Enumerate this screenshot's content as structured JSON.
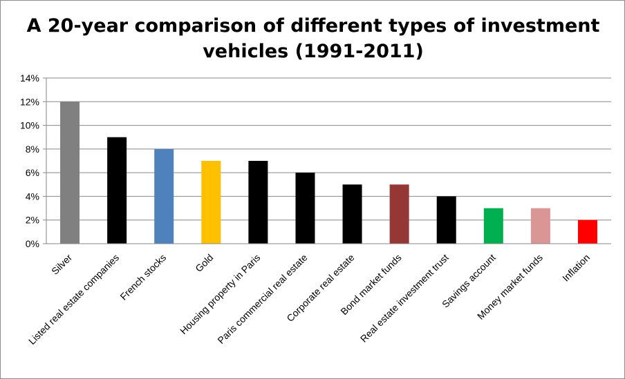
{
  "chart_data": {
    "type": "bar",
    "title_lines": [
      "A 20-year comparison of different types of investment",
      "vehicles (1991-2011)"
    ],
    "xlabel": "",
    "ylabel": "",
    "ylim": [
      0,
      14
    ],
    "y_ticks": [
      "0%",
      "2%",
      "4%",
      "6%",
      "8%",
      "10%",
      "12%",
      "14%"
    ],
    "grid": true,
    "legend": "none",
    "categories": [
      "Silver",
      "Listed real estate companies",
      "French stocks",
      "Gold",
      "Housing property in Paris",
      "Paris commercial real estate",
      "Corporate real estate",
      "Bond market funds",
      "Real estate investment trust",
      "Savings account",
      "Money market funds",
      "Inflation"
    ],
    "values": [
      12,
      9,
      8,
      7,
      7,
      6,
      5,
      5,
      4,
      3,
      3,
      2
    ],
    "colors": [
      "#808080",
      "#000000",
      "#4f81bd",
      "#ffc000",
      "#000000",
      "#000000",
      "#000000",
      "#953735",
      "#000000",
      "#00b050",
      "#d99694",
      "#ff0000"
    ]
  }
}
